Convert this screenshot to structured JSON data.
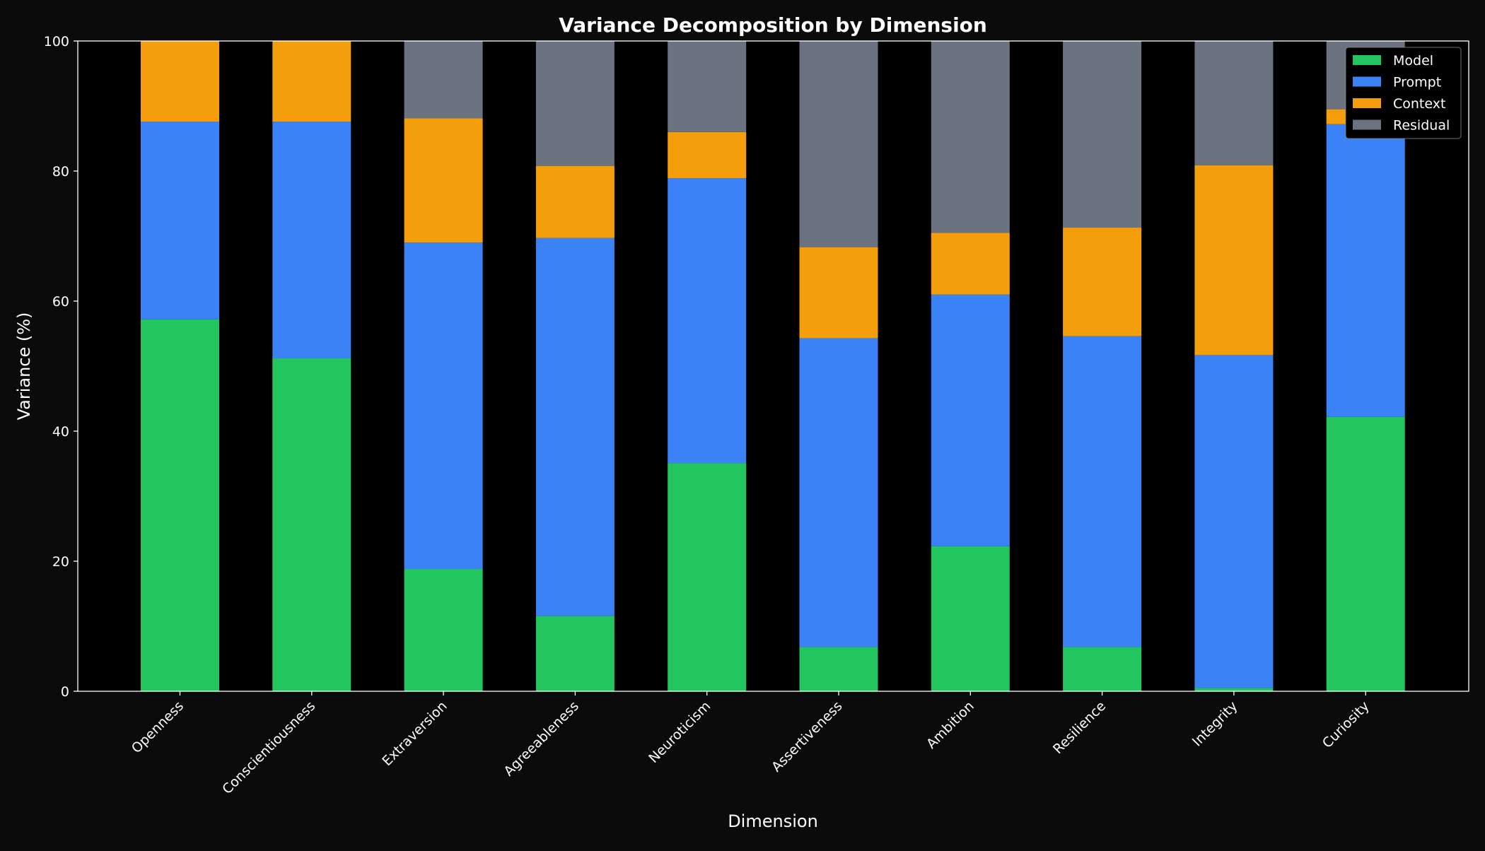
{
  "chart_data": {
    "type": "bar",
    "stacked": true,
    "title": "Variance Decomposition by Dimension",
    "xlabel": "Dimension",
    "ylabel": "Variance (%)",
    "ylim": [
      0,
      100
    ],
    "yticks": [
      0,
      20,
      40,
      60,
      80,
      100
    ],
    "grid": false,
    "legend_placement": "top-right",
    "categories": [
      "Openness",
      "Conscientiousness",
      "Extraversion",
      "Agreeableness",
      "Neuroticism",
      "Assertiveness",
      "Ambition",
      "Resilience",
      "Integrity",
      "Curiosity"
    ],
    "series": [
      {
        "name": "Model",
        "color": "#22c55e",
        "values": [
          57.2,
          51.2,
          18.8,
          11.6,
          35.1,
          6.8,
          22.3,
          6.8,
          0.5,
          42.2
        ]
      },
      {
        "name": "Prompt",
        "color": "#3b82f6",
        "values": [
          30.4,
          36.4,
          50.2,
          58.1,
          43.8,
          47.5,
          38.7,
          47.8,
          51.2,
          45.0
        ]
      },
      {
        "name": "Context",
        "color": "#f59e0b",
        "values": [
          12.4,
          12.4,
          19.1,
          11.1,
          7.1,
          14.0,
          9.5,
          16.7,
          29.2,
          2.3
        ]
      },
      {
        "name": "Residual",
        "color": "#6b7280",
        "values": [
          0.0,
          0.0,
          11.9,
          19.2,
          14.0,
          31.7,
          29.5,
          28.7,
          19.1,
          10.5
        ]
      }
    ]
  },
  "colors": {
    "figure_background": "#0b0b0b",
    "axes_background": "#000000",
    "text": "#ffffff"
  }
}
